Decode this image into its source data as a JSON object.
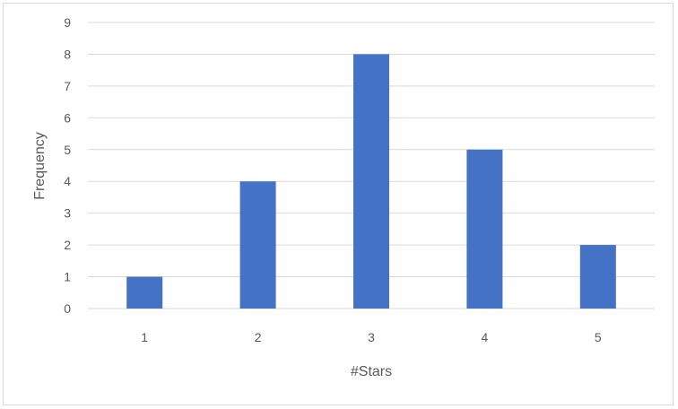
{
  "chart_data": {
    "type": "bar",
    "title": "",
    "xlabel": "#Stars",
    "ylabel": "Frequency",
    "categories": [
      "1",
      "2",
      "3",
      "4",
      "5"
    ],
    "values": [
      1,
      4,
      8,
      5,
      2
    ],
    "ylim": [
      0,
      9
    ],
    "yticks": [
      "0",
      "1",
      "2",
      "3",
      "4",
      "5",
      "6",
      "7",
      "8",
      "9"
    ],
    "grid": true,
    "legend": "none",
    "bar_color": "#4472c4",
    "grid_color": "#d9d9d9"
  }
}
